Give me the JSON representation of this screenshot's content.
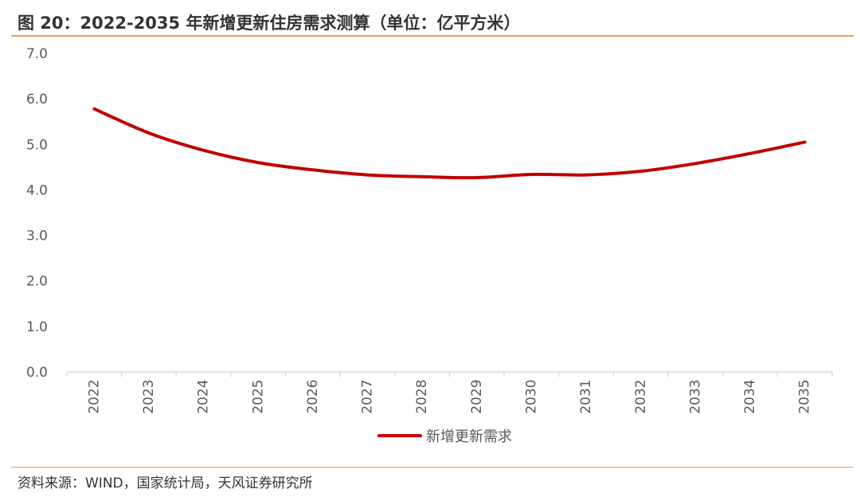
{
  "header": {
    "title": "图 20：2022-2035 年新增更新住房需求测算（单位：亿平方米）"
  },
  "footer": {
    "source": "资料来源：WIND，国家统计局，天风证券研究所"
  },
  "colors": {
    "series": "#c00000",
    "axis": "#d9d9d9",
    "text": "#595959",
    "rule": "#e8a04a"
  },
  "chart_data": {
    "type": "line",
    "title": "图 20：2022-2035 年新增更新住房需求测算（单位：亿平方米）",
    "xlabel": "",
    "ylabel": "",
    "x": [
      "2022",
      "2023",
      "2024",
      "2025",
      "2026",
      "2027",
      "2028",
      "2029",
      "2030",
      "2031",
      "2032",
      "2033",
      "2034",
      "2035"
    ],
    "y_ticks": [
      "0.0",
      "1.0",
      "2.0",
      "3.0",
      "4.0",
      "5.0",
      "6.0",
      "7.0"
    ],
    "ylim": [
      0,
      7
    ],
    "grid": false,
    "legend_position": "bottom-center",
    "series": [
      {
        "name": "新增更新需求",
        "values": [
          5.78,
          5.25,
          4.87,
          4.6,
          4.44,
          4.33,
          4.29,
          4.27,
          4.34,
          4.33,
          4.41,
          4.58,
          4.8,
          5.05
        ]
      }
    ]
  }
}
